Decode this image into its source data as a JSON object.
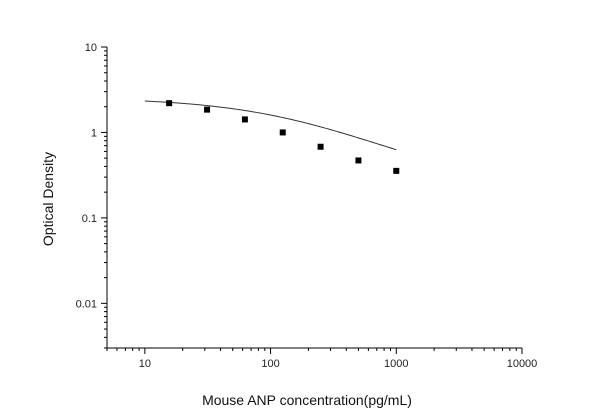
{
  "chart_data": {
    "type": "scatter",
    "xlabel": "Mouse ANP concentration(pg/mL)",
    "ylabel": "Optical Density",
    "x_scale": "log",
    "y_scale": "log",
    "xlim": [
      5,
      10000
    ],
    "ylim": [
      0.003,
      10
    ],
    "x_ticks": [
      {
        "value": 10,
        "label": "10"
      },
      {
        "value": 100,
        "label": "100"
      },
      {
        "value": 1000,
        "label": "1000"
      },
      {
        "value": 10000,
        "label": "10000"
      }
    ],
    "y_ticks": [
      {
        "value": 10,
        "label": "10"
      },
      {
        "value": 1,
        "label": "1"
      },
      {
        "value": 0.1,
        "label": "0.1"
      },
      {
        "value": 0.01,
        "label": "0.01"
      }
    ],
    "points": [
      {
        "x": 15.6,
        "y": 2.2
      },
      {
        "x": 31.25,
        "y": 1.85
      },
      {
        "x": 62.5,
        "y": 1.42
      },
      {
        "x": 125,
        "y": 1.0
      },
      {
        "x": 250,
        "y": 0.68
      },
      {
        "x": 500,
        "y": 0.47
      },
      {
        "x": 1000,
        "y": 0.355
      }
    ],
    "fit_curve": {
      "type": "4PL",
      "x_range": [
        10,
        1000
      ],
      "A": 2.55,
      "B": 0.82,
      "C": 160,
      "D": 0.2
    },
    "colors": {
      "marker": "#000000",
      "curve": "#333333",
      "axis": "#000000"
    }
  }
}
